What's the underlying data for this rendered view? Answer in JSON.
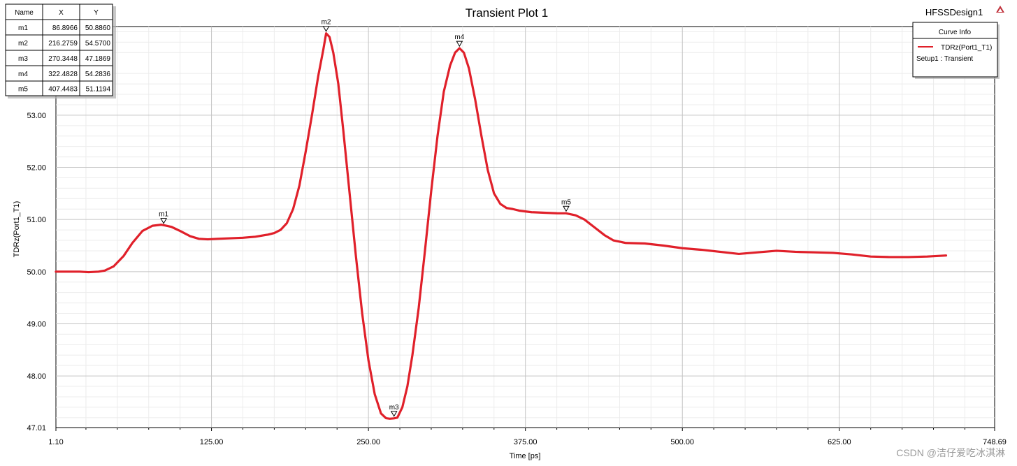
{
  "chart_data": {
    "type": "line",
    "title": "Transient Plot 1",
    "design": "HFSSDesign1",
    "xlabel": "Time [ps]",
    "ylabel": "TDRz(Port1_T1)",
    "xlim": [
      1.1,
      748.69
    ],
    "ylim": [
      47.01,
      54.7
    ],
    "x_ticks": [
      1.1,
      125.0,
      250.0,
      375.0,
      500.0,
      625.0,
      748.69
    ],
    "x_tick_labels": [
      "1.10",
      "125.00",
      "250.00",
      "375.00",
      "500.00",
      "625.00",
      "748.69"
    ],
    "y_ticks": [
      47.01,
      48.0,
      49.0,
      50.0,
      51.0,
      52.0,
      53.0
    ],
    "y_tick_labels": [
      "47.01",
      "48.00",
      "49.00",
      "50.00",
      "51.00",
      "52.00",
      "53.00"
    ],
    "grid": true,
    "legend": {
      "header": "Curve Info",
      "placement": "top-right",
      "entries": [
        {
          "name": "TDRz(Port1_T1)",
          "sub": "Setup1 : Transient",
          "color": "#e0202a"
        }
      ]
    },
    "series": [
      {
        "name": "TDRz(Port1_T1)",
        "color": "#e0202a",
        "x": [
          1.1,
          10,
          20,
          27,
          35,
          40,
          47,
          55,
          62,
          70,
          78,
          85,
          88,
          93,
          100,
          108,
          115,
          122,
          130,
          140,
          150,
          160,
          170,
          175,
          180,
          185,
          190,
          195,
          200,
          205,
          210,
          214,
          216.3,
          219,
          222,
          226,
          230,
          235,
          240,
          245,
          250,
          255,
          260,
          264,
          267,
          270.3,
          273,
          277,
          281,
          285,
          290,
          295,
          300,
          305,
          310,
          315,
          319,
          322.5,
          326,
          330,
          335,
          340,
          345,
          350,
          355,
          360,
          365,
          370,
          380,
          390,
          400,
          407.4,
          415,
          422,
          430,
          438,
          445,
          455,
          470,
          485,
          500,
          515,
          530,
          545,
          560,
          575,
          590,
          605,
          620,
          635,
          650,
          665,
          680,
          695,
          710
        ],
        "y": [
          50.0,
          50.0,
          50.0,
          49.99,
          50.0,
          50.02,
          50.1,
          50.3,
          50.55,
          50.78,
          50.88,
          50.9,
          50.886,
          50.86,
          50.78,
          50.68,
          50.63,
          50.62,
          50.63,
          50.64,
          50.65,
          50.67,
          50.71,
          50.74,
          50.8,
          50.93,
          51.2,
          51.65,
          52.3,
          53.0,
          53.75,
          54.25,
          54.57,
          54.5,
          54.2,
          53.6,
          52.7,
          51.5,
          50.3,
          49.2,
          48.3,
          47.65,
          47.28,
          47.19,
          47.18,
          47.187,
          47.2,
          47.4,
          47.8,
          48.4,
          49.3,
          50.4,
          51.55,
          52.6,
          53.45,
          53.95,
          54.2,
          54.284,
          54.2,
          53.9,
          53.3,
          52.6,
          51.95,
          51.5,
          51.3,
          51.22,
          51.2,
          51.17,
          51.14,
          51.13,
          51.12,
          51.119,
          51.08,
          51.0,
          50.85,
          50.7,
          50.6,
          50.55,
          50.54,
          50.5,
          50.45,
          50.42,
          50.38,
          50.34,
          50.37,
          50.4,
          50.38,
          50.37,
          50.36,
          50.33,
          50.29,
          50.28,
          50.28,
          50.29,
          50.31
        ]
      }
    ],
    "markers": [
      {
        "name": "m1",
        "x": 86.8966,
        "y": 50.886,
        "x_text": "86.8966",
        "y_text": "50.8860"
      },
      {
        "name": "m2",
        "x": 216.2759,
        "y": 54.57,
        "x_text": "216.2759",
        "y_text": "54.5700"
      },
      {
        "name": "m3",
        "x": 270.3448,
        "y": 47.1869,
        "x_text": "270.3448",
        "y_text": "47.1869"
      },
      {
        "name": "m4",
        "x": 322.4828,
        "y": 54.2836,
        "x_text": "322.4828",
        "y_text": "54.2836"
      },
      {
        "name": "m5",
        "x": 407.4483,
        "y": 51.1194,
        "x_text": "407.4483",
        "y_text": "51.1194"
      }
    ],
    "marker_table": {
      "headers": [
        "Name",
        "X",
        "Y"
      ]
    }
  },
  "watermark": "CSDN @洁仔爱吃冰淇淋"
}
